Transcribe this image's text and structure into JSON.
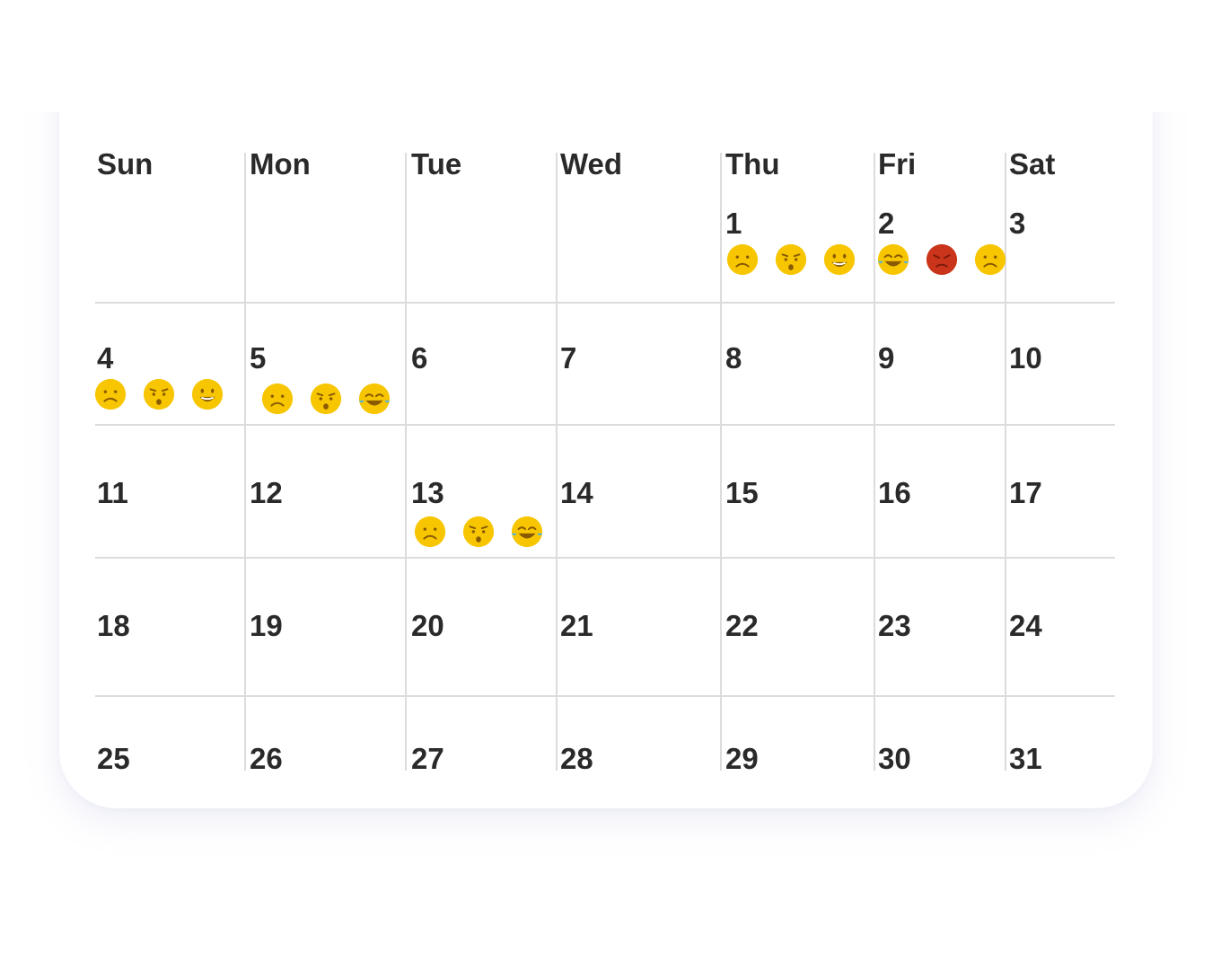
{
  "weekdays": [
    "Sun",
    "Mon",
    "Tue",
    "Wed",
    "Thu",
    "Fri",
    "Sat"
  ],
  "weeks": [
    [
      {
        "day": "",
        "moods": []
      },
      {
        "day": "",
        "moods": []
      },
      {
        "day": "",
        "moods": []
      },
      {
        "day": "",
        "moods": []
      },
      {
        "day": "1",
        "moods": [
          "sad-face-icon",
          "worried-face-icon",
          "grin-face-icon"
        ]
      },
      {
        "day": "2",
        "moods": [
          "tears-of-joy-face-icon",
          "angry-face-icon",
          "sad-face-icon"
        ]
      },
      {
        "day": "3",
        "moods": []
      }
    ],
    [
      {
        "day": "4",
        "moods": [
          "sad-face-icon",
          "worried-face-icon",
          "grin-face-icon"
        ]
      },
      {
        "day": "5",
        "moods": [
          "sad-face-icon",
          "worried-face-icon",
          "tears-of-joy-face-icon"
        ]
      },
      {
        "day": "6",
        "moods": []
      },
      {
        "day": "7",
        "moods": []
      },
      {
        "day": "8",
        "moods": []
      },
      {
        "day": "9",
        "moods": []
      },
      {
        "day": "10",
        "moods": []
      }
    ],
    [
      {
        "day": "11",
        "moods": []
      },
      {
        "day": "12",
        "moods": []
      },
      {
        "day": "13",
        "moods": [
          "sad-face-icon",
          "worried-face-icon",
          "tears-of-joy-face-icon"
        ]
      },
      {
        "day": "14",
        "moods": []
      },
      {
        "day": "15",
        "moods": []
      },
      {
        "day": "16",
        "moods": []
      },
      {
        "day": "17",
        "moods": []
      }
    ],
    [
      {
        "day": "18",
        "moods": []
      },
      {
        "day": "19",
        "moods": []
      },
      {
        "day": "20",
        "moods": []
      },
      {
        "day": "21",
        "moods": []
      },
      {
        "day": "22",
        "moods": []
      },
      {
        "day": "23",
        "moods": []
      },
      {
        "day": "24",
        "moods": []
      }
    ],
    [
      {
        "day": "25",
        "moods": []
      },
      {
        "day": "26",
        "moods": []
      },
      {
        "day": "27",
        "moods": []
      },
      {
        "day": "28",
        "moods": []
      },
      {
        "day": "29",
        "moods": []
      },
      {
        "day": "30",
        "moods": []
      },
      {
        "day": "31",
        "moods": []
      }
    ]
  ],
  "colors": {
    "emoji_yellow": "#f7c600",
    "emoji_yellow_dark": "#e0a800",
    "emoji_red": "#c9341a",
    "emoji_feature": "#8a5a00",
    "tear_blue": "#4fb3e6",
    "grid": "#dcdcdc",
    "text": "#2a2a2a"
  }
}
